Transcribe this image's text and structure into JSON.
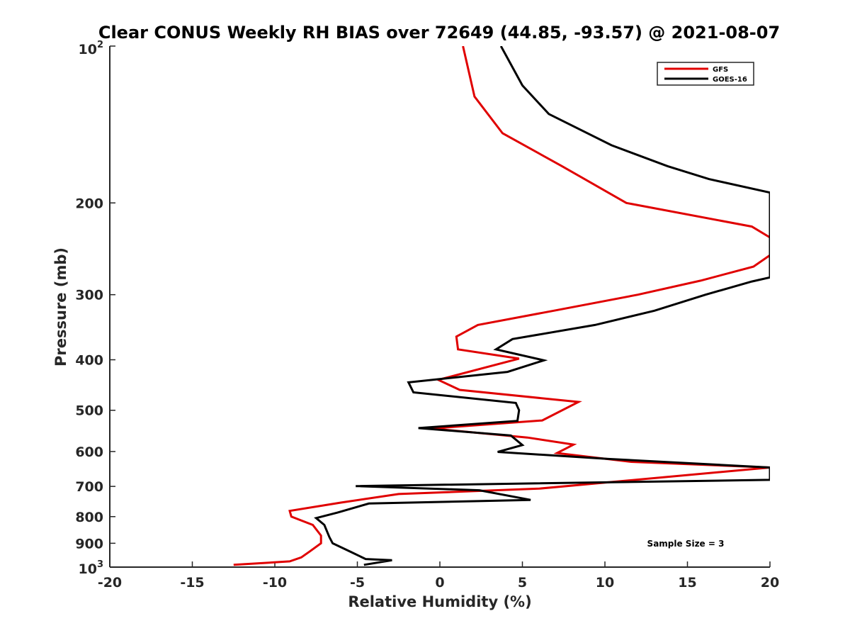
{
  "chart_data": {
    "type": "line",
    "title": "Clear CONUS Weekly RH BIAS over 72649 (44.85, -93.57) @ 2021-08-07",
    "xlabel": "Relative Humidity (%)",
    "ylabel": "Pressure (mb)",
    "xlim": [
      -20,
      20
    ],
    "ylim": [
      100,
      1000
    ],
    "y_scale": "log",
    "y_reversed": true,
    "grid": false,
    "legend_position": "top-right",
    "annotation": "Sample Size = 3",
    "x_ticks": [
      -20,
      -15,
      -10,
      -5,
      0,
      5,
      10,
      15,
      20
    ],
    "x_tick_labels": [
      "-20",
      "-15",
      "-10",
      "-5",
      "0",
      "5",
      "10",
      "15",
      "20"
    ],
    "y_ticks": [
      200,
      300,
      400,
      500,
      600,
      700,
      800,
      900
    ],
    "y_tick_labels": [
      "200",
      "300",
      "400",
      "500",
      "600",
      "700",
      "800",
      "900"
    ],
    "y_edge_labels": {
      "top": {
        "value": 100,
        "base": "10",
        "exp": "2"
      },
      "bottom": {
        "value": 1000,
        "base": "10",
        "exp": "3"
      }
    },
    "series": [
      {
        "name": "GFS",
        "color": "#e00000",
        "points": [
          [
            1.4,
            100
          ],
          [
            2.1,
            125
          ],
          [
            3.8,
            147
          ],
          [
            7.4,
            170
          ],
          [
            11.3,
            200
          ],
          [
            18.9,
            222
          ],
          [
            20,
            233
          ],
          [
            20,
            252
          ],
          [
            19,
            265
          ],
          [
            15.8,
            282
          ],
          [
            12,
            300
          ],
          [
            6.9,
            322
          ],
          [
            2.3,
            343
          ],
          [
            1,
            361
          ],
          [
            1.1,
            382
          ],
          [
            4.8,
            398
          ],
          [
            -0.1,
            437
          ],
          [
            1.2,
            457
          ],
          [
            8.4,
            482
          ],
          [
            6.2,
            523
          ],
          [
            -0.5,
            542
          ],
          [
            5.3,
            564
          ],
          [
            8.1,
            582
          ],
          [
            7.1,
            604
          ],
          [
            11.6,
            628
          ],
          [
            20,
            644
          ],
          [
            6,
            707
          ],
          [
            -2.5,
            724
          ],
          [
            -6,
            752
          ],
          [
            -9.1,
            780
          ],
          [
            -9,
            800
          ],
          [
            -7.7,
            830
          ],
          [
            -7.2,
            870
          ],
          [
            -7.2,
            900
          ],
          [
            -7.9,
            934
          ],
          [
            -8.4,
            958
          ],
          [
            -9.1,
            975
          ],
          [
            -12.5,
            990
          ]
        ]
      },
      {
        "name": "GOES-16",
        "color": "#000000",
        "points": [
          [
            3.7,
            100
          ],
          [
            5,
            119
          ],
          [
            6.6,
            135
          ],
          [
            10.4,
            155
          ],
          [
            13.8,
            170
          ],
          [
            16.3,
            180
          ],
          [
            20,
            191
          ],
          [
            20,
            278
          ],
          [
            18.9,
            283
          ],
          [
            16.1,
            300
          ],
          [
            13,
            322
          ],
          [
            9.4,
            343
          ],
          [
            4.4,
            365
          ],
          [
            3.4,
            382
          ],
          [
            6.3,
            401
          ],
          [
            4.1,
            422
          ],
          [
            -1.9,
            442
          ],
          [
            -1.6,
            462
          ],
          [
            4.6,
            484
          ],
          [
            4.8,
            500
          ],
          [
            4.7,
            524
          ],
          [
            -1.3,
            541
          ],
          [
            4.3,
            559
          ],
          [
            5,
            583
          ],
          [
            3.5,
            601
          ],
          [
            10.2,
            620
          ],
          [
            20,
            644
          ],
          [
            20,
            680
          ],
          [
            -5.1,
            699
          ],
          [
            2.4,
            712
          ],
          [
            5.5,
            743
          ],
          [
            -4.3,
            755
          ],
          [
            -6.2,
            786
          ],
          [
            -7.5,
            805
          ],
          [
            -7,
            830
          ],
          [
            -6.7,
            875
          ],
          [
            -6.5,
            900
          ],
          [
            -5.4,
            935
          ],
          [
            -4.5,
            965
          ],
          [
            -2.9,
            970
          ],
          [
            -4.6,
            990
          ]
        ]
      }
    ]
  }
}
